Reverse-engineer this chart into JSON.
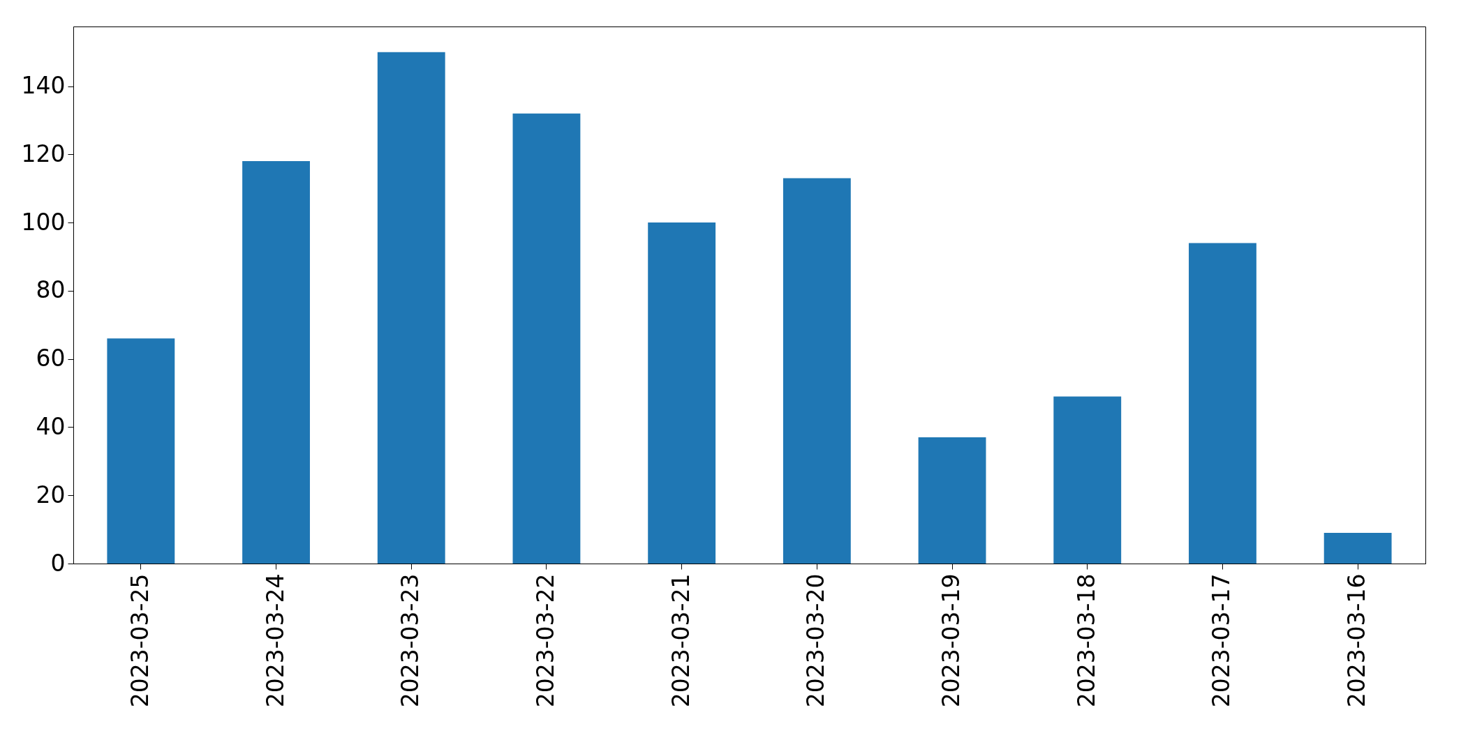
{
  "chart_data": {
    "type": "bar",
    "categories": [
      "2023-03-25",
      "2023-03-24",
      "2023-03-23",
      "2023-03-22",
      "2023-03-21",
      "2023-03-20",
      "2023-03-19",
      "2023-03-18",
      "2023-03-17",
      "2023-03-16"
    ],
    "values": [
      66,
      118,
      150,
      132,
      100,
      113,
      37,
      49,
      94,
      9
    ],
    "color": "#1f77b4",
    "ylim": [
      0,
      157.5
    ],
    "yticks": [
      0,
      20,
      40,
      60,
      80,
      100,
      120,
      140
    ],
    "grid": false
  }
}
